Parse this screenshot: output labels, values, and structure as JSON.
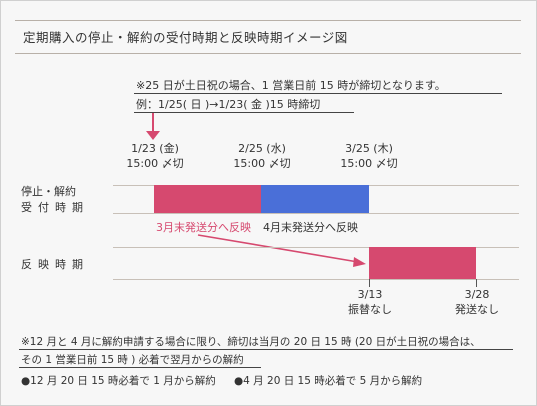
{
  "title": "定期購入の停止・解約の受付時期と反映時期イメージ図",
  "note": {
    "line1": "※25 日が土日祝の場合、1 営業日前 15 時が締切となります。",
    "line2": "例：1/25( 日 )→1/23( 金 )15 時締切"
  },
  "deadlines": [
    {
      "date": "1/23 (金)",
      "time": "15:00 〆切"
    },
    {
      "date": "2/25 (水)",
      "time": "15:00 〆切"
    },
    {
      "date": "3/25 (木)",
      "time": "15:00 〆切"
    }
  ],
  "rows": {
    "accept_line1": "停止・解約",
    "accept_line2": "受付時期",
    "reflect": "反映時期"
  },
  "bar_labels": {
    "march": "3月末発送分へ反映",
    "april": "4月末発送分へ反映"
  },
  "reflect_points": [
    {
      "date": "3/13",
      "note": "振替なし"
    },
    {
      "date": "3/28",
      "note": "発送なし"
    }
  ],
  "footer": {
    "line1": "※12 月と 4 月に解約申請する場合に限り、締切は当月の 20 日 15 時 (20 日が土日祝の場合は、",
    "line2": "その 1 営業日前 15 時 ) 必着で翌月からの解約",
    "bullet1": "●12 月 20 日 15 時必着で 1 月から解約",
    "bullet2": "●4 月 20 日 15 時必着で 5 月から解約"
  },
  "colors": {
    "pink": "#d6496f",
    "blue": "#4a6fd8",
    "rule": "#b8b0a8"
  }
}
